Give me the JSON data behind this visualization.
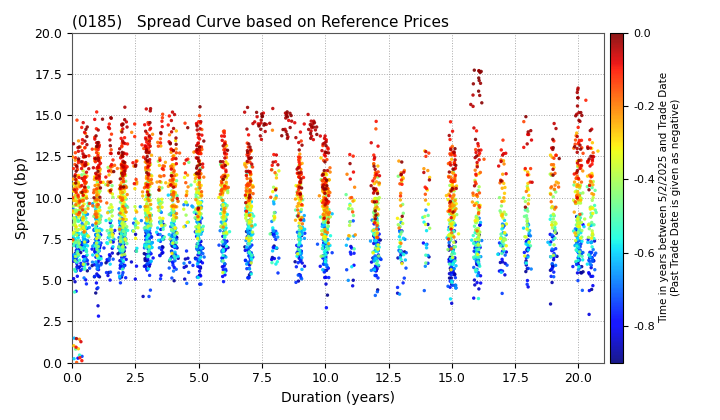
{
  "title": "(0185)   Spread Curve based on Reference Prices",
  "xlabel": "Duration (years)",
  "ylabel": "Spread (bp)",
  "colorbar_label": "Time in years between 5/2/2025 and Trade Date\n(Past Trade Date is given as negative)",
  "colorbar_ticks": [
    0.0,
    -0.2,
    -0.4,
    -0.6,
    -0.8
  ],
  "xlim": [
    0,
    21
  ],
  "ylim": [
    0.0,
    20.0
  ],
  "xticks": [
    0.0,
    2.5,
    5.0,
    7.5,
    10.0,
    12.5,
    15.0,
    17.5,
    20.0
  ],
  "yticks": [
    0.0,
    2.5,
    5.0,
    7.5,
    10.0,
    12.5,
    15.0,
    17.5,
    20.0
  ],
  "cmap": "jet",
  "vmin": -0.9,
  "vmax": 0.0,
  "marker_size": 6,
  "background_color": "#ffffff",
  "grid_color": "#aaaaaa",
  "grid_style": "dotted",
  "bond_tenors": [
    0.08,
    0.17,
    0.25,
    0.5,
    1.0,
    1.5,
    2.0,
    2.5,
    3.0,
    3.5,
    4.0,
    4.5,
    5.0,
    6.0,
    7.0,
    8.0,
    9.0,
    10.0,
    11.0,
    12.0,
    13.0,
    14.0,
    15.0,
    16.0,
    17.0,
    18.0,
    19.0,
    20.0,
    20.5
  ]
}
